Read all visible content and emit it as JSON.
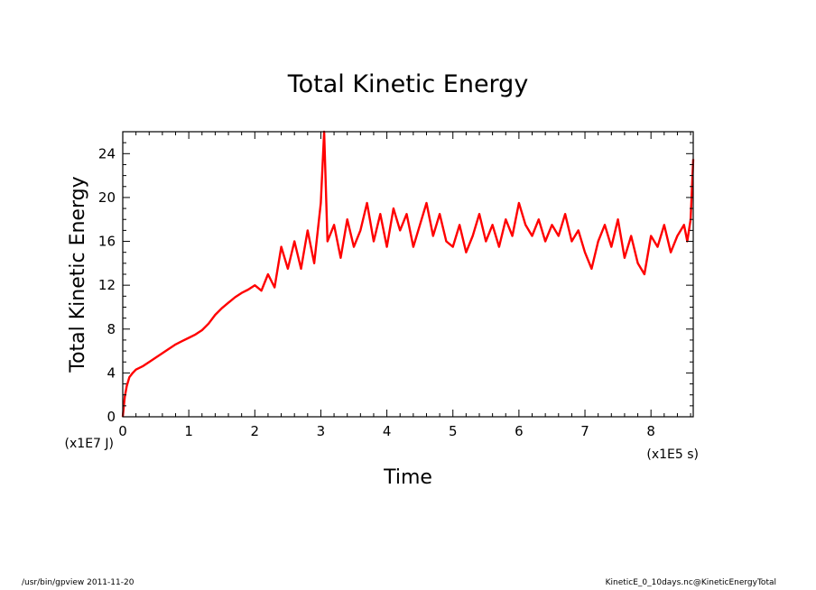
{
  "chart_data": {
    "type": "line",
    "title": "Total Kinetic Energy",
    "xlabel": "Time",
    "ylabel": "Total Kinetic Energy",
    "x_unit": "(x1E5 s)",
    "y_unit": "(x1E7 J)",
    "xlim": [
      0,
      8.64
    ],
    "ylim": [
      0,
      26
    ],
    "x_ticks": [
      0,
      1,
      2,
      3,
      4,
      5,
      6,
      7,
      8
    ],
    "y_ticks": [
      0,
      4,
      8,
      12,
      16,
      20,
      24
    ],
    "grid": false,
    "series": [
      {
        "color": "#ff0000",
        "x": [
          0,
          0.03,
          0.06,
          0.1,
          0.15,
          0.2,
          0.3,
          0.4,
          0.5,
          0.6,
          0.7,
          0.8,
          0.9,
          1.0,
          1.1,
          1.2,
          1.3,
          1.4,
          1.5,
          1.6,
          1.7,
          1.8,
          1.9,
          2.0,
          2.1,
          2.2,
          2.3,
          2.4,
          2.5,
          2.6,
          2.7,
          2.8,
          2.9,
          3.0,
          3.05,
          3.1,
          3.2,
          3.3,
          3.4,
          3.5,
          3.6,
          3.7,
          3.8,
          3.9,
          4.0,
          4.1,
          4.2,
          4.3,
          4.4,
          4.5,
          4.6,
          4.7,
          4.8,
          4.9,
          5.0,
          5.1,
          5.2,
          5.3,
          5.4,
          5.5,
          5.6,
          5.7,
          5.8,
          5.9,
          6.0,
          6.1,
          6.2,
          6.3,
          6.4,
          6.5,
          6.6,
          6.7,
          6.8,
          6.9,
          7.0,
          7.1,
          7.2,
          7.3,
          7.4,
          7.5,
          7.6,
          7.7,
          7.8,
          7.9,
          8.0,
          8.1,
          8.2,
          8.3,
          8.4,
          8.5,
          8.55,
          8.6,
          8.64
        ],
        "y": [
          0,
          1.8,
          2.8,
          3.6,
          4.0,
          4.3,
          4.6,
          5.0,
          5.4,
          5.8,
          6.2,
          6.6,
          6.9,
          7.2,
          7.5,
          7.9,
          8.5,
          9.3,
          9.9,
          10.4,
          10.9,
          11.3,
          11.6,
          12.0,
          11.5,
          13.0,
          11.8,
          15.5,
          13.5,
          16.0,
          13.5,
          17.0,
          14.0,
          19.5,
          26.0,
          16.0,
          17.5,
          14.5,
          18.0,
          15.5,
          17.0,
          19.5,
          16.0,
          18.5,
          15.5,
          19.0,
          17.0,
          18.5,
          15.5,
          17.5,
          19.5,
          16.5,
          18.5,
          16.0,
          15.5,
          17.5,
          15.0,
          16.5,
          18.5,
          16.0,
          17.5,
          15.5,
          18.0,
          16.5,
          19.5,
          17.5,
          16.5,
          18.0,
          16.0,
          17.5,
          16.5,
          18.5,
          16.0,
          17.0,
          15.0,
          13.5,
          16.0,
          17.5,
          15.5,
          18.0,
          14.5,
          16.5,
          14.0,
          13.0,
          16.5,
          15.5,
          17.5,
          15.0,
          16.5,
          17.5,
          16.0,
          18.0,
          23.5
        ]
      }
    ]
  },
  "footer": {
    "left": "/usr/bin/gpview   2011-11-20",
    "right": "KineticE_0_10days.nc@KineticEnergyTotal"
  }
}
